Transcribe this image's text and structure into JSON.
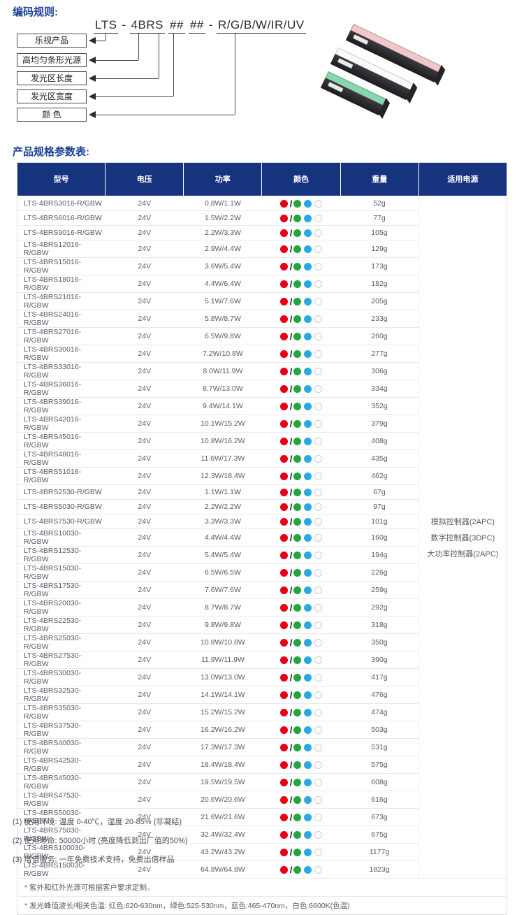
{
  "titles": {
    "coding_rules": "编码规则:",
    "spec_table": "产品规格参数表:"
  },
  "coding_rules": {
    "formula_segments": [
      {
        "text": "LTS",
        "underline": true
      },
      {
        "text": "-",
        "underline": false
      },
      {
        "text": "4BRS",
        "underline": true
      },
      {
        "text": "##",
        "underline": true
      },
      {
        "text": "##",
        "underline": true
      },
      {
        "text": "-",
        "underline": false
      },
      {
        "text": "R/G/B/W/IR/UV",
        "underline": true
      }
    ],
    "labels": [
      "乐视产品",
      "高均匀条形光源",
      "发光区长度",
      "发光区宽度",
      "颜 色"
    ]
  },
  "product_photo": {
    "bar_colors": [
      "#f2c6ca",
      "#fafafa",
      "#86d7ae"
    ]
  },
  "colors": {
    "header_bg": "#16337d",
    "accent_blue": "#1c3f96",
    "dot_red": "#e60012",
    "dot_green": "#21a73c",
    "dot_blue": "#29a9e1"
  },
  "spec_table": {
    "headers": [
      "型号",
      "电压",
      "功率",
      "颜色",
      "重量",
      "适用电源"
    ],
    "color_cell_pattern": [
      "red",
      "slash",
      "green",
      "blue",
      "outline"
    ],
    "power_supply": [
      "模拟控制器(2APC)",
      "数字控制器(3DPC)",
      "大功率控制器(2APC)"
    ],
    "rows": [
      {
        "model": "LTS-4BRS3016-R/GBW",
        "voltage": "24V",
        "power": "0.8W/1.1W",
        "weight": "52g"
      },
      {
        "model": "LTS-4BRS6016-R/GBW",
        "voltage": "24V",
        "power": "1.5W/2.2W",
        "weight": "77g"
      },
      {
        "model": "LTS-4BRS9016-R/GBW",
        "voltage": "24V",
        "power": "2.2W/3.3W",
        "weight": "105g"
      },
      {
        "model": "LTS-4BRS12016-R/GBW",
        "voltage": "24V",
        "power": "2.9W/4.4W",
        "weight": "129g"
      },
      {
        "model": "LTS-4BRS15016-R/GBW",
        "voltage": "24V",
        "power": "3.6W/5.4W",
        "weight": "173g"
      },
      {
        "model": "LTS-4BRS18016-R/GBW",
        "voltage": "24V",
        "power": "4.4W/6.4W",
        "weight": "182g"
      },
      {
        "model": "LTS-4BRS21016-R/GBW",
        "voltage": "24V",
        "power": "5.1W/7.6W",
        "weight": "205g"
      },
      {
        "model": "LTS-4BRS24016-R/GBW",
        "voltage": "24V",
        "power": "5.8W/8.7W",
        "weight": "233g"
      },
      {
        "model": "LTS-4BRS27016-R/GBW",
        "voltage": "24V",
        "power": "6.5W/9.8W",
        "weight": "260g"
      },
      {
        "model": "LTS-4BRS30016-R/GBW",
        "voltage": "24V",
        "power": "7.2W/10.8W",
        "weight": "277g"
      },
      {
        "model": "LTS-4BRS33016-R/GBW",
        "voltage": "24V",
        "power": "8.0W/11.9W",
        "weight": "306g"
      },
      {
        "model": "LTS-4BRS36016-R/GBW",
        "voltage": "24V",
        "power": "8.7W/13.0W",
        "weight": "334g"
      },
      {
        "model": "LTS-4BRS39016-R/GBW",
        "voltage": "24V",
        "power": "9.4W/14.1W",
        "weight": "352g"
      },
      {
        "model": "LTS-4BRS42016-R/GBW",
        "voltage": "24V",
        "power": "10.1W/15.2W",
        "weight": "379g"
      },
      {
        "model": "LTS-4BRS45016-R/GBW",
        "voltage": "24V",
        "power": "10.8W/16.2W",
        "weight": "408g"
      },
      {
        "model": "LTS-4BRS48016-R/GBW",
        "voltage": "24V",
        "power": "11.6W/17.3W",
        "weight": "435g"
      },
      {
        "model": "LTS-4BRS51016-R/GBW",
        "voltage": "24V",
        "power": "12.3W/18.4W",
        "weight": "462g"
      },
      {
        "model": "LTS-4BRS2530-R/GBW",
        "voltage": "24V",
        "power": "1.1W/1.1W",
        "weight": "67g"
      },
      {
        "model": "LTS-4BRS5030-R/GBW",
        "voltage": "24V",
        "power": "2.2W/2.2W",
        "weight": "97g"
      },
      {
        "model": "LTS-4BRS7530-R/GBW",
        "voltage": "24V",
        "power": "3.3W/3.3W",
        "weight": "101g"
      },
      {
        "model": "LTS-4BRS10030-R/GBW",
        "voltage": "24V",
        "power": "4.4W/4.4W",
        "weight": "160g"
      },
      {
        "model": "LTS-4BRS12530-R/GBW",
        "voltage": "24V",
        "power": "5.4W/5.4W",
        "weight": "194g"
      },
      {
        "model": "LTS-4BRS15030-R/GBW",
        "voltage": "24V",
        "power": "6.5W/6.5W",
        "weight": "226g"
      },
      {
        "model": "LTS-4BRS17530-R/GBW",
        "voltage": "24V",
        "power": "7.6W/7.6W",
        "weight": "259g"
      },
      {
        "model": "LTS-4BRS20030-R/GBW",
        "voltage": "24V",
        "power": "8.7W/8.7W",
        "weight": "292g"
      },
      {
        "model": "LTS-4BRS22530-R/GBW",
        "voltage": "24V",
        "power": "9.8W/9.8W",
        "weight": "318g"
      },
      {
        "model": "LTS-4BRS25030-R/GBW",
        "voltage": "24V",
        "power": "10.8W/10.8W",
        "weight": "350g"
      },
      {
        "model": "LTS-4BRS27530-R/GBW",
        "voltage": "24V",
        "power": "11.9W/11.9W",
        "weight": "390g"
      },
      {
        "model": "LTS-4BRS30030-R/GBW",
        "voltage": "24V",
        "power": "13.0W/13.0W",
        "weight": "417g"
      },
      {
        "model": "LTS-4BRS32530-R/GBW",
        "voltage": "24V",
        "power": "14.1W/14.1W",
        "weight": "476g"
      },
      {
        "model": "LTS-4BRS35030-R/GBW",
        "voltage": "24V",
        "power": "15.2W/15.2W",
        "weight": "474g"
      },
      {
        "model": "LTS-4BRS37530-R/GBW",
        "voltage": "24V",
        "power": "16.2W/16.2W",
        "weight": "503g"
      },
      {
        "model": "LTS-4BRS40030-R/GBW",
        "voltage": "24V",
        "power": "17.3W/17.3W",
        "weight": "531g"
      },
      {
        "model": "LTS-4BRS42530-R/GBW",
        "voltage": "24V",
        "power": "18.4W/18.4W",
        "weight": "575g"
      },
      {
        "model": "LTS-4BRS45030-R/GBW",
        "voltage": "24V",
        "power": "19.5W/19.5W",
        "weight": "608g"
      },
      {
        "model": "LTS-4BRS47530-R/GBW",
        "voltage": "24V",
        "power": "20.6W/20.6W",
        "weight": "616g"
      },
      {
        "model": "LTS-4BRS50030-R/GBW",
        "voltage": "24V",
        "power": "21.6W/21.6W",
        "weight": "673g"
      },
      {
        "model": "LTS-4BRS75030-R/GBW",
        "voltage": "24V",
        "power": "32.4W/32.4W",
        "weight": "675g"
      },
      {
        "model": "LTS-4BRS100030-R/GBW",
        "voltage": "24V",
        "power": "43.2W/43.2W",
        "weight": "1177g"
      },
      {
        "model": "LTS-4BRS150030-R/GBW",
        "voltage": "24V",
        "power": "64.8W/64.8W",
        "weight": "1823g"
      }
    ],
    "footnotes": [
      "* 紫外和红外光源可根据客户要求定制。",
      "* 发光峰值波长/相关色温: 红色:620-630nm，绿色:525-530nm，蓝色:465-470nm，白色:6600K(色温)"
    ]
  },
  "notes": [
    "(1) 使用环境: 温度 0-40℃，湿度 20-85% (非凝结)",
    "(2) 使用寿命: 50000小时 (亮度降低到出厂值的50%)",
    "(3) 增值服务: 一年免费技术支持，免费出借样品"
  ]
}
